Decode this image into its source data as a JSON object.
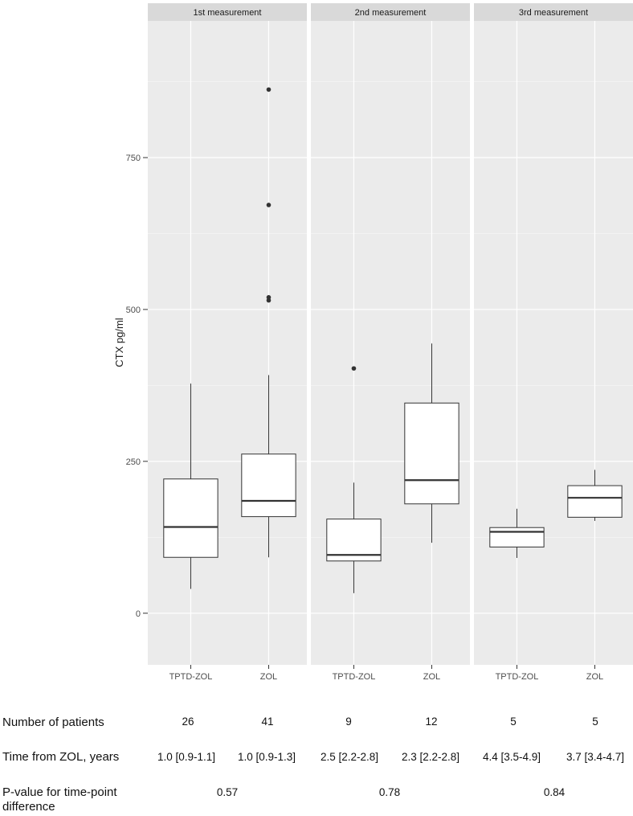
{
  "chart_data": {
    "type": "boxplot",
    "ylabel": "CTX pg/ml",
    "ylim": [
      -85,
      975
    ],
    "yticks": [
      0,
      250,
      500,
      750
    ],
    "grid": true,
    "facets": [
      {
        "title": "1st measurement",
        "categories": [
          "TPTD-ZOL",
          "ZOL"
        ],
        "boxes": [
          {
            "category": "TPTD-ZOL",
            "whisker_low": 40,
            "q1": 92,
            "median": 142,
            "q3": 221,
            "whisker_high": 378,
            "outliers": []
          },
          {
            "category": "ZOL",
            "whisker_low": 92,
            "q1": 159,
            "median": 185,
            "q3": 262,
            "whisker_high": 392,
            "outliers": [
              515,
              520,
              672,
              862
            ]
          }
        ]
      },
      {
        "title": "2nd measurement",
        "categories": [
          "TPTD-ZOL",
          "ZOL"
        ],
        "boxes": [
          {
            "category": "TPTD-ZOL",
            "whisker_low": 33,
            "q1": 86,
            "median": 96,
            "q3": 155,
            "whisker_high": 215,
            "outliers": [
              403
            ]
          },
          {
            "category": "ZOL",
            "whisker_low": 116,
            "q1": 180,
            "median": 219,
            "q3": 346,
            "whisker_high": 444,
            "outliers": []
          }
        ]
      },
      {
        "title": "3rd measurement",
        "categories": [
          "TPTD-ZOL",
          "ZOL"
        ],
        "boxes": [
          {
            "category": "TPTD-ZOL",
            "whisker_low": 91,
            "q1": 109,
            "median": 134,
            "q3": 141,
            "whisker_high": 172,
            "outliers": []
          },
          {
            "category": "ZOL",
            "whisker_low": 152,
            "q1": 158,
            "median": 190,
            "q3": 210,
            "whisker_high": 236,
            "outliers": []
          }
        ]
      }
    ]
  },
  "table": {
    "patients_label": "Number of patients",
    "patients": [
      "26",
      "41",
      "9",
      "12",
      "5",
      "5"
    ],
    "time_label": "Time from ZOL, years",
    "time": [
      "1.0 [0.9-1.1]",
      "1.0 [0.9-1.3]",
      "2.5 [2.2-2.8]",
      "2.3 [2.2-2.8]",
      "4.4 [3.5-4.9]",
      "3.7 [3.4-4.7]"
    ],
    "pvalue_label": "P-value for time-point difference",
    "pvalues": [
      "0.57",
      "0.78",
      "0.84"
    ]
  }
}
